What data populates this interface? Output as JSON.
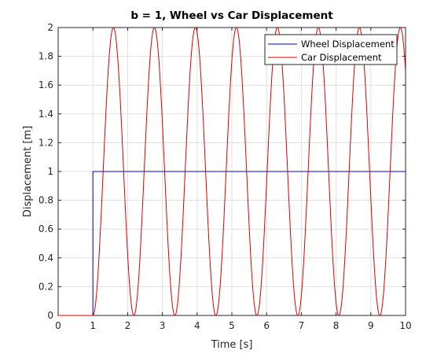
{
  "chart_data": {
    "type": "line",
    "title": "b = 1, Wheel vs Car Displacement",
    "xlabel": "Time [s]",
    "ylabel": "Displacement [m]",
    "xlim": [
      0,
      10
    ],
    "ylim": [
      0,
      2
    ],
    "xticks": [
      "0",
      "1",
      "2",
      "3",
      "4",
      "5",
      "6",
      "7",
      "8",
      "9",
      "10"
    ],
    "yticks": [
      "0",
      "0.2",
      "0.4",
      "0.6",
      "0.8",
      "1",
      "1.2",
      "1.4",
      "1.6",
      "1.8",
      "2"
    ],
    "grid": true,
    "legend_position": "top-right",
    "series": [
      {
        "name": "Wheel Displacement",
        "color": "#0000cc",
        "x": [
          0,
          1,
          1,
          10
        ],
        "y": [
          0,
          0,
          1,
          1
        ]
      },
      {
        "name": "Car Displacement",
        "color": "#dd0000",
        "step_time": 1,
        "period": 1.18,
        "amplitude": 1,
        "x": [
          0,
          1,
          1.59,
          2.18,
          2.77,
          3.36,
          3.95,
          4.54,
          5.13,
          5.72,
          6.31,
          6.9,
          7.49,
          8.08,
          8.67,
          9.26,
          9.85,
          10
        ],
        "y": [
          0,
          0,
          2,
          0,
          2,
          0,
          2,
          0,
          2,
          0,
          2,
          0,
          2,
          0,
          2,
          0,
          2,
          1.84
        ]
      }
    ]
  }
}
